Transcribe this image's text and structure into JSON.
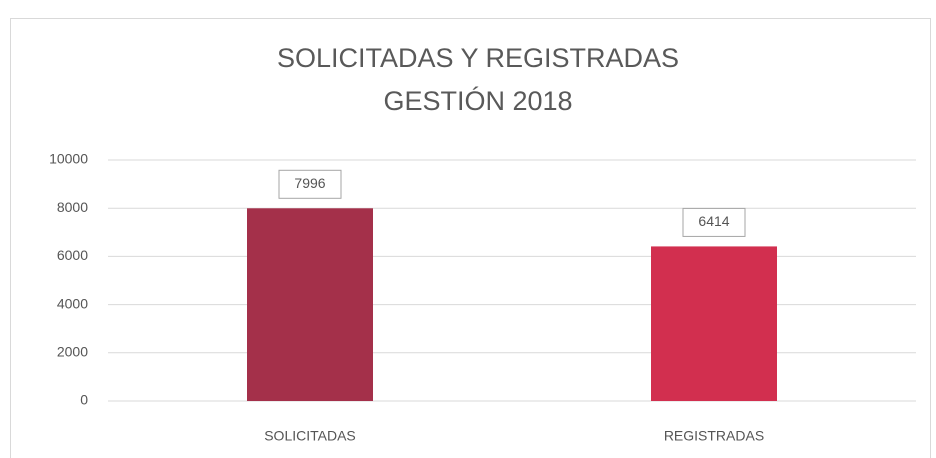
{
  "chart_data": {
    "type": "bar",
    "title": "SOLICITADAS Y REGISTRADAS",
    "subtitle": "GESTIÓN 2018",
    "categories": [
      "SOLICITADAS",
      "REGISTRADAS"
    ],
    "values": [
      7996,
      6414
    ],
    "colors": [
      "#a4304a",
      "#d22f4f"
    ],
    "ylim": [
      0,
      10000
    ],
    "yticks": [
      0,
      2000,
      4000,
      6000,
      8000,
      10000
    ],
    "grid": true
  }
}
